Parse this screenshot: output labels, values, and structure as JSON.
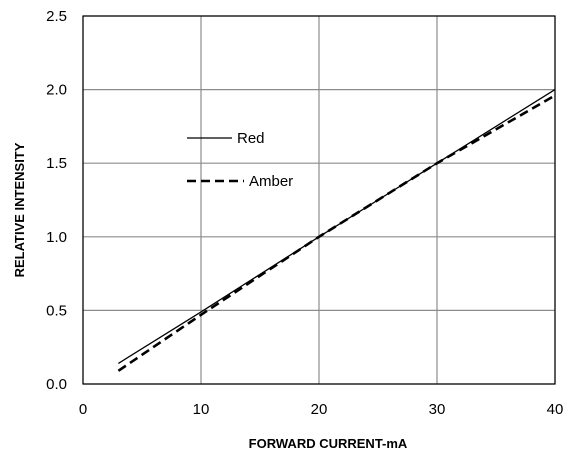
{
  "chart_data": {
    "type": "line",
    "title": "",
    "xlabel": "FORWARD CURRENT-mA",
    "ylabel": "RELATIVE INTENSITY",
    "xlim": [
      0,
      40
    ],
    "ylim": [
      0,
      2.5
    ],
    "xticks": [
      0,
      10,
      20,
      30,
      40
    ],
    "yticks": [
      0.0,
      0.5,
      1.0,
      1.5,
      2.0,
      2.5
    ],
    "xtick_labels": [
      "0",
      "10",
      "20",
      "30",
      "40"
    ],
    "ytick_labels": [
      "0.0",
      "0.5",
      "1.0",
      "1.5",
      "2.0",
      "2.5"
    ],
    "grid": true,
    "legend_position": "upper-left-inside",
    "series": [
      {
        "name": "Red",
        "style": "solid",
        "color": "#000000",
        "x": [
          3,
          10,
          20,
          30,
          40
        ],
        "y": [
          0.14,
          0.49,
          1.0,
          1.5,
          2.0
        ]
      },
      {
        "name": "Amber",
        "style": "dashed",
        "color": "#000000",
        "x": [
          3,
          10,
          20,
          30,
          40
        ],
        "y": [
          0.09,
          0.47,
          1.0,
          1.5,
          1.96
        ]
      }
    ]
  }
}
